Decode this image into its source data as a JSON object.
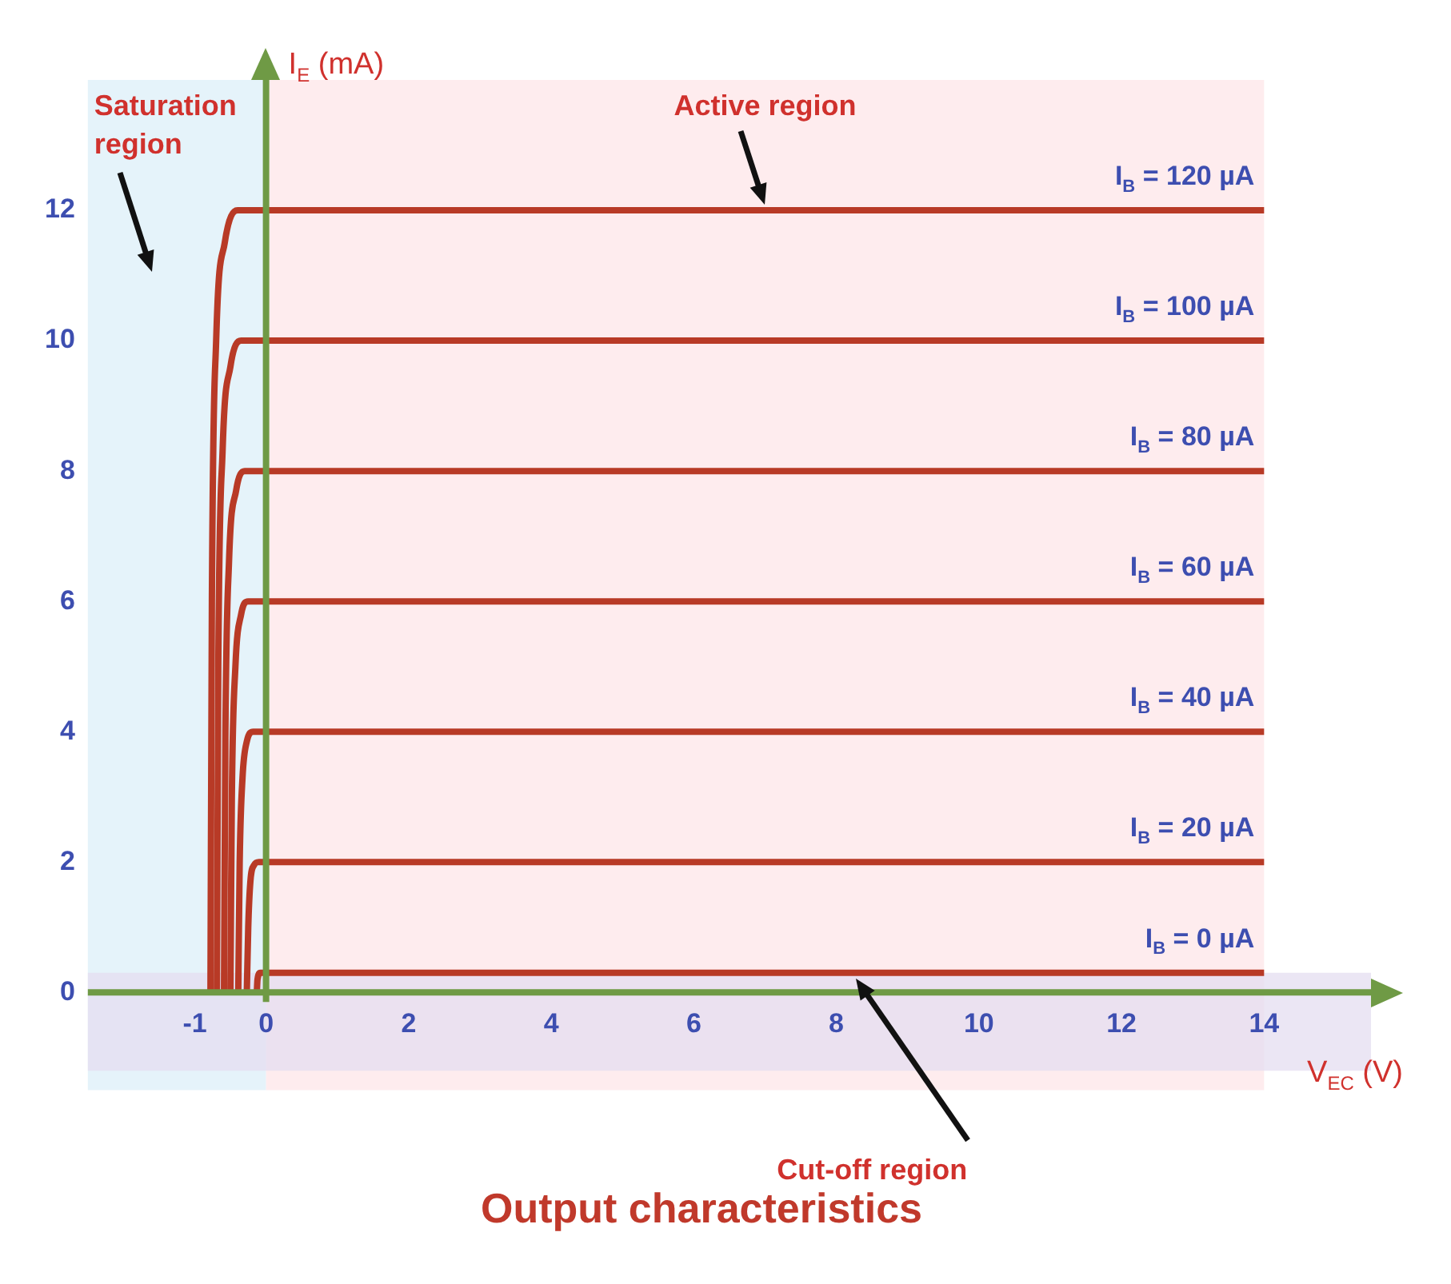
{
  "chart_data": {
    "type": "line",
    "title": "Output characteristics",
    "xlabel": "V$_{EC}$ (V)",
    "ylabel": "I$_{E}$ (mA)",
    "xlim": [
      -2.5,
      15.5
    ],
    "ylim": [
      -1.5,
      14
    ],
    "xticks": [
      -1,
      0,
      2,
      4,
      6,
      8,
      10,
      12,
      14
    ],
    "yticks": [
      0,
      2,
      4,
      6,
      8,
      10,
      12
    ],
    "grid": false,
    "legend": false,
    "marker": "none",
    "line_style": "solid",
    "series": [
      {
        "name": "I$_{B}$ = 120 µA",
        "color": "#b83a26",
        "x": [
          -0.78,
          -0.76,
          -0.7,
          -0.58,
          -0.4,
          14
        ],
        "values": [
          0,
          6,
          10,
          11.5,
          12,
          12
        ]
      },
      {
        "name": "I$_{B}$ = 100 µA",
        "color": "#b83a26",
        "x": [
          -0.69,
          -0.67,
          -0.61,
          -0.5,
          -0.35,
          14
        ],
        "values": [
          0,
          5,
          8.3,
          9.6,
          10,
          10
        ]
      },
      {
        "name": "I$_{B}$ = 80 µA",
        "color": "#b83a26",
        "x": [
          -0.59,
          -0.57,
          -0.52,
          -0.42,
          -0.3,
          14
        ],
        "values": [
          0,
          4,
          6.6,
          7.7,
          8,
          8
        ]
      },
      {
        "name": "I$_{B}$ = 60 µA",
        "color": "#b83a26",
        "x": [
          -0.5,
          -0.48,
          -0.43,
          -0.35,
          -0.25,
          14
        ],
        "values": [
          0,
          3,
          5,
          5.8,
          6,
          6
        ]
      },
      {
        "name": "I$_{B}$ = 40 µA",
        "color": "#b83a26",
        "x": [
          -0.39,
          -0.37,
          -0.33,
          -0.27,
          -0.18,
          14
        ],
        "values": [
          0,
          2,
          3.3,
          3.85,
          4,
          4
        ]
      },
      {
        "name": "I$_{B}$ = 20 µA",
        "color": "#b83a26",
        "x": [
          -0.27,
          -0.25,
          -0.22,
          -0.17,
          -0.1,
          14
        ],
        "values": [
          0,
          1,
          1.7,
          1.95,
          2,
          2
        ]
      },
      {
        "name": "I$_{B}$ = 0 µA",
        "color": "#b83a26",
        "x": [
          -0.13,
          -0.12,
          -0.08,
          14
        ],
        "values": [
          0,
          0.2,
          0.3,
          0.3
        ]
      }
    ],
    "ref_lines": [
      {
        "axis": "x",
        "value": 0,
        "color": "#6f9a45"
      }
    ],
    "bands": [
      {
        "axis": "x",
        "from": -2.5,
        "to": 0,
        "label": "Saturation region",
        "color": "#dcefF8"
      },
      {
        "axis": "x",
        "from": 0,
        "to": 14,
        "label": "Active region",
        "color": "#fde6e8"
      },
      {
        "axis": "y",
        "from": -1.2,
        "to": 0.3,
        "label": "Cut-off region",
        "color": "#e4def0"
      }
    ]
  }
}
